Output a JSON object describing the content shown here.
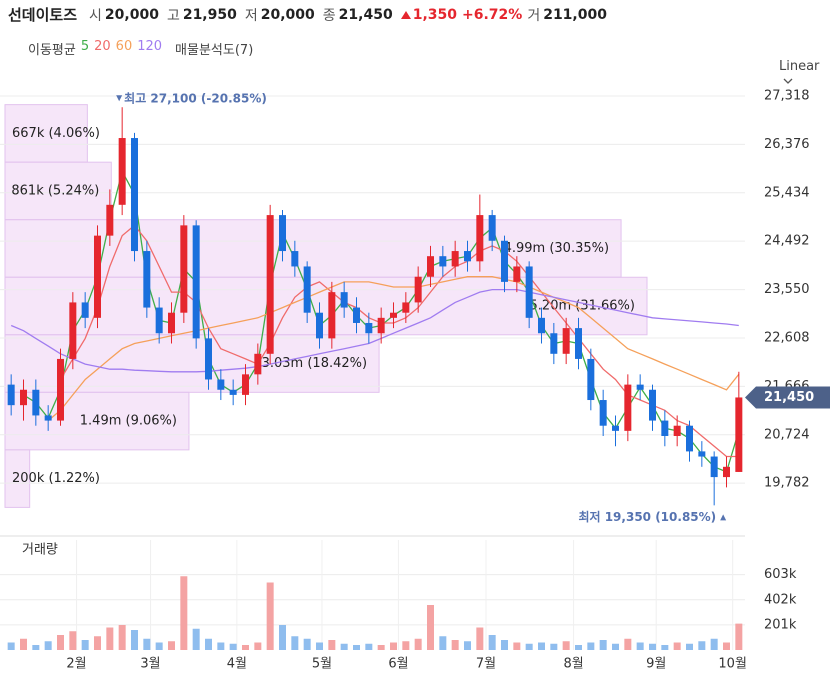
{
  "header": {
    "name": "선데이토즈",
    "stats": [
      {
        "label": "시",
        "value": "20,000"
      },
      {
        "label": "고",
        "value": "21,950"
      },
      {
        "label": "저",
        "value": "20,000"
      },
      {
        "label": "종",
        "value": "21,450"
      }
    ],
    "change": "1,350",
    "change_pct": "+6.72%",
    "volume_label": "거",
    "volume": "211,000"
  },
  "chart_data": {
    "type": "candlestick",
    "scale": "Linear",
    "ma_title": "이동평균",
    "profile_title": "매물분석도(7)",
    "x": [
      0,
      1,
      2,
      3,
      4,
      5,
      6,
      7,
      8,
      9,
      10,
      11,
      12,
      13,
      14,
      15,
      16,
      17,
      18,
      19,
      20,
      21,
      22,
      23,
      24,
      25,
      26,
      27,
      28,
      29,
      30,
      31,
      32,
      33,
      34,
      35,
      36,
      37,
      38,
      39,
      40,
      41,
      42,
      43,
      44,
      45,
      46,
      47,
      48,
      49,
      50,
      51,
      52,
      53,
      54,
      55,
      56,
      57,
      58,
      59
    ],
    "xlim": [
      -0.5,
      59.5
    ],
    "xticks": [
      {
        "value": 5.3,
        "label": "2월"
      },
      {
        "value": 11.3,
        "label": "3월"
      },
      {
        "value": 18.3,
        "label": "4월"
      },
      {
        "value": 25.2,
        "label": "5월"
      },
      {
        "value": 31.4,
        "label": "6월"
      },
      {
        "value": 38.5,
        "label": "7월"
      },
      {
        "value": 45.6,
        "label": "8월"
      },
      {
        "value": 52.3,
        "label": "9월"
      },
      {
        "value": 58.5,
        "label": "10월"
      }
    ],
    "ylim": [
      18870,
      27435
    ],
    "yticks": [
      {
        "value": 27318,
        "label": "27,318"
      },
      {
        "value": 26376,
        "label": "26,376"
      },
      {
        "value": 25434,
        "label": "25,434"
      },
      {
        "value": 24492,
        "label": "24,492"
      },
      {
        "value": 23550,
        "label": "23,550"
      },
      {
        "value": 22608,
        "label": "22,608"
      },
      {
        "value": 21666,
        "label": "21,666"
      },
      {
        "value": 20724,
        "label": "20,724"
      },
      {
        "value": 19782,
        "label": "19,782"
      }
    ],
    "grid": true,
    "up_color": "#e5262e",
    "down_color": "#1a6fdc",
    "open": [
      21700,
      21300,
      21600,
      21100,
      21000,
      22200,
      23300,
      23000,
      24600,
      25200,
      26500,
      24300,
      23200,
      22700,
      23100,
      24800,
      22600,
      21800,
      21600,
      21500,
      21900,
      22300,
      25000,
      24300,
      24000,
      23100,
      22600,
      23500,
      23200,
      22900,
      22700,
      23000,
      23100,
      23300,
      23800,
      24200,
      24000,
      24300,
      24100,
      25000,
      24500,
      23700,
      24000,
      23000,
      22700,
      22300,
      22800,
      22200,
      21400,
      20900,
      20800,
      21700,
      21600,
      21000,
      20700,
      20900,
      20400,
      20300,
      19900,
      20000
    ],
    "high": [
      21900,
      21800,
      21800,
      21300,
      22400,
      23500,
      23500,
      24800,
      25500,
      27100,
      26600,
      24500,
      23400,
      23300,
      25000,
      24900,
      22800,
      22000,
      21800,
      22100,
      22500,
      25200,
      25100,
      24500,
      24100,
      23300,
      23700,
      23700,
      23400,
      23100,
      23200,
      23300,
      23500,
      24000,
      24400,
      24400,
      24500,
      24500,
      25400,
      25100,
      24600,
      24200,
      24100,
      23200,
      22900,
      23000,
      23000,
      22400,
      21600,
      21100,
      21900,
      21900,
      21700,
      21200,
      21100,
      21000,
      20600,
      20400,
      20300,
      21950
    ],
    "low": [
      21100,
      21000,
      20900,
      20800,
      20900,
      22000,
      22800,
      22800,
      24400,
      25000,
      24100,
      23000,
      22500,
      22500,
      22900,
      22400,
      21600,
      21400,
      21300,
      21300,
      21700,
      22100,
      24100,
      23800,
      22900,
      22400,
      22400,
      23000,
      22700,
      22500,
      22500,
      22800,
      22900,
      23100,
      23600,
      23800,
      23800,
      23900,
      23900,
      24300,
      23500,
      23500,
      22800,
      22500,
      22100,
      22100,
      22000,
      21200,
      20700,
      20500,
      20600,
      21400,
      20800,
      20500,
      20500,
      20200,
      20100,
      19350,
      19700,
      20000
    ],
    "close": [
      21300,
      21600,
      21100,
      21000,
      22200,
      23300,
      23000,
      24600,
      25200,
      26500,
      24300,
      23200,
      22700,
      23100,
      24800,
      22600,
      21800,
      21600,
      21500,
      21900,
      22300,
      25000,
      24300,
      24000,
      23100,
      22600,
      23500,
      23200,
      22900,
      22700,
      23000,
      23100,
      23300,
      23800,
      24200,
      24000,
      24300,
      24100,
      25000,
      24500,
      23700,
      24000,
      23000,
      22700,
      22300,
      22800,
      22200,
      21400,
      20900,
      20800,
      21700,
      21600,
      21000,
      20700,
      20900,
      20400,
      20300,
      19900,
      20100,
      21450
    ],
    "last": {
      "value": 21450,
      "label": "21,450"
    },
    "last_color": "#4d6189",
    "ma": [
      {
        "name": "5",
        "color": "#3fae49",
        "values": [
          null,
          21500,
          21350,
          21050,
          21600,
          22750,
          23150,
          23800,
          24900,
          25850,
          25400,
          23750,
          22950,
          22900,
          23950,
          23700,
          22200,
          21700,
          21550,
          21700,
          22100,
          23650,
          24650,
          24150,
          23550,
          22850,
          23050,
          23350,
          23050,
          22800,
          22850,
          23050,
          23200,
          23550,
          24000,
          24100,
          24150,
          24200,
          24550,
          24750,
          24100,
          23850,
          23500,
          22850,
          22500,
          22550,
          22500,
          21800,
          21150,
          20850,
          21250,
          21650,
          21300,
          20850,
          20800,
          20650,
          20350,
          20100,
          20000,
          20800
        ]
      },
      {
        "name": "20",
        "color": "#f06b6b",
        "values": [
          null,
          null,
          null,
          null,
          21800,
          22200,
          22600,
          23200,
          24000,
          24600,
          24800,
          24500,
          24000,
          23500,
          23500,
          23300,
          22800,
          22400,
          22300,
          22200,
          22100,
          22500,
          23000,
          23400,
          23600,
          23700,
          23500,
          23300,
          23200,
          23000,
          22900,
          22900,
          23000,
          23200,
          23500,
          23800,
          24000,
          24100,
          24300,
          24400,
          24300,
          24100,
          23800,
          23500,
          23200,
          22900,
          22600,
          22300,
          22000,
          21800,
          21500,
          21400,
          21300,
          21200,
          21000,
          20900,
          20700,
          20500,
          20300,
          20300
        ]
      },
      {
        "name": "60",
        "color": "#f5a05a",
        "values": [
          null,
          null,
          null,
          21000,
          21200,
          21500,
          21800,
          22000,
          22200,
          22400,
          22500,
          22550,
          22600,
          22650,
          22700,
          22750,
          22800,
          22850,
          22900,
          22950,
          23000,
          23100,
          23200,
          23300,
          23400,
          23500,
          23600,
          23700,
          23700,
          23700,
          23650,
          23600,
          23600,
          23600,
          23650,
          23700,
          23750,
          23800,
          23800,
          23800,
          23750,
          23700,
          23600,
          23500,
          23400,
          23300,
          23200,
          23000,
          22800,
          22600,
          22400,
          22300,
          22200,
          22100,
          22000,
          21900,
          21800,
          21700,
          21600,
          21900
        ]
      },
      {
        "name": "120",
        "color": "#a07cf0",
        "values": [
          22850,
          22750,
          22600,
          22450,
          22300,
          22200,
          22100,
          22050,
          22000,
          22000,
          21980,
          21970,
          21960,
          21950,
          21950,
          21950,
          21960,
          21980,
          22000,
          22020,
          22050,
          22100,
          22150,
          22200,
          22250,
          22300,
          22350,
          22400,
          22450,
          22500,
          22600,
          22700,
          22800,
          22900,
          23000,
          23150,
          23300,
          23400,
          23500,
          23550,
          23550,
          23550,
          23500,
          23450,
          23400,
          23350,
          23300,
          23250,
          23200,
          23150,
          23100,
          23050,
          23000,
          22980,
          22960,
          22940,
          22920,
          22900,
          22880,
          22850
        ]
      }
    ],
    "profile": {
      "bins": [
        27150,
        26030,
        24910,
        23790,
        22670,
        21550,
        20430,
        19310
      ],
      "values": [
        667000,
        861000,
        4990000,
        5200000,
        3030000,
        1490000,
        200000
      ],
      "value_labels": [
        "667k (4.06%)",
        "861k (5.24%)",
        "4.99m (30.35%)",
        "5.20m (31.66%)",
        "3.03m (18.42%)",
        "1.49m (9.06%)",
        "200k (1.22%)"
      ],
      "color": "#f3def7",
      "edge": "#e2c2ee"
    },
    "annotations": [
      {
        "text": "최고 27,100 (-20.85%)"
      },
      {
        "text": "최저 19,350 (10.85%)"
      }
    ],
    "annotation_color": "#5673b0",
    "volume": {
      "title": "거래량",
      "up_color": "#f4a3a3",
      "down_color": "#8fbdee",
      "ylim": [
        0,
        880000
      ],
      "yticks": [
        {
          "value": 603000,
          "label": "603k"
        },
        {
          "value": 402000,
          "label": "402k"
        },
        {
          "value": 201000,
          "label": "201k"
        }
      ],
      "values": [
        60000,
        90000,
        40000,
        70000,
        120000,
        150000,
        80000,
        110000,
        180000,
        200000,
        160000,
        90000,
        60000,
        70000,
        590000,
        170000,
        90000,
        60000,
        50000,
        40000,
        60000,
        540000,
        200000,
        110000,
        90000,
        60000,
        80000,
        50000,
        40000,
        50000,
        40000,
        60000,
        70000,
        90000,
        360000,
        110000,
        80000,
        70000,
        180000,
        120000,
        80000,
        60000,
        50000,
        60000,
        50000,
        70000,
        40000,
        60000,
        80000,
        50000,
        90000,
        60000,
        50000,
        40000,
        60000,
        50000,
        70000,
        90000,
        60000,
        211000
      ]
    }
  }
}
